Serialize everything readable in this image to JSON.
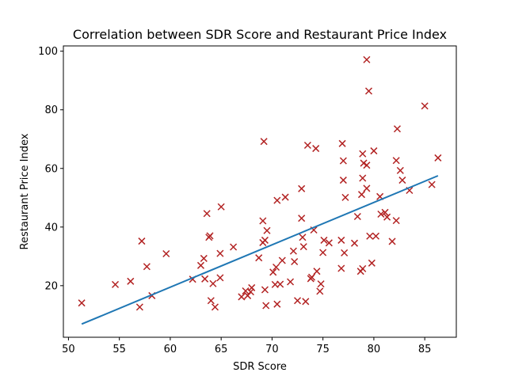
{
  "chart_data": {
    "type": "scatter",
    "title": "Correlation between SDR Score and Restaurant Price Index",
    "xlabel": "SDR Score",
    "ylabel": "Restaurant Price Index",
    "xlim": [
      49.5,
      88.1
    ],
    "ylim": [
      2.4,
      101.8
    ],
    "xticks": [
      50,
      55,
      60,
      65,
      70,
      75,
      80,
      85
    ],
    "yticks": [
      20,
      40,
      60,
      80,
      100
    ],
    "grid": false,
    "series": [
      {
        "type": "scatter",
        "marker": "x",
        "color": "#b22222",
        "points": [
          [
            51.3,
            14.1
          ],
          [
            54.6,
            20.4
          ],
          [
            56.1,
            21.5
          ],
          [
            57.0,
            12.7
          ],
          [
            57.2,
            35.2
          ],
          [
            57.7,
            26.5
          ],
          [
            58.2,
            16.6
          ],
          [
            59.6,
            30.9
          ],
          [
            62.2,
            22.2
          ],
          [
            63.0,
            26.9
          ],
          [
            63.3,
            29.3
          ],
          [
            63.4,
            22.3
          ],
          [
            63.6,
            44.6
          ],
          [
            63.8,
            36.5
          ],
          [
            63.9,
            37.0
          ],
          [
            64.0,
            14.9
          ],
          [
            64.2,
            20.7
          ],
          [
            64.4,
            12.7
          ],
          [
            64.9,
            22.7
          ],
          [
            64.9,
            31.0
          ],
          [
            65.0,
            46.9
          ],
          [
            66.2,
            33.2
          ],
          [
            67.0,
            16.2
          ],
          [
            67.4,
            18.2
          ],
          [
            67.6,
            16.6
          ],
          [
            67.9,
            17.9
          ],
          [
            68.0,
            19.3
          ],
          [
            68.7,
            29.5
          ],
          [
            69.1,
            42.1
          ],
          [
            69.1,
            34.7
          ],
          [
            69.2,
            69.2
          ],
          [
            69.3,
            18.6
          ],
          [
            69.3,
            35.5
          ],
          [
            69.4,
            13.2
          ],
          [
            69.5,
            38.8
          ],
          [
            70.1,
            24.6
          ],
          [
            70.3,
            20.4
          ],
          [
            70.4,
            26.3
          ],
          [
            70.5,
            13.7
          ],
          [
            70.5,
            49.1
          ],
          [
            70.8,
            20.5
          ],
          [
            71.0,
            28.6
          ],
          [
            71.3,
            50.2
          ],
          [
            71.8,
            21.3
          ],
          [
            72.1,
            31.8
          ],
          [
            72.2,
            28.2
          ],
          [
            72.5,
            14.9
          ],
          [
            72.9,
            43.0
          ],
          [
            72.9,
            53.1
          ],
          [
            73.0,
            36.5
          ],
          [
            73.1,
            33.3
          ],
          [
            73.3,
            14.6
          ],
          [
            73.5,
            67.9
          ],
          [
            73.8,
            22.4
          ],
          [
            73.9,
            22.9
          ],
          [
            74.1,
            39.0
          ],
          [
            74.3,
            66.8
          ],
          [
            74.4,
            24.9
          ],
          [
            74.7,
            18.1
          ],
          [
            74.8,
            20.6
          ],
          [
            75.0,
            31.3
          ],
          [
            75.1,
            35.5
          ],
          [
            75.6,
            34.6
          ],
          [
            76.8,
            25.9
          ],
          [
            76.8,
            35.5
          ],
          [
            76.9,
            68.5
          ],
          [
            77.0,
            62.6
          ],
          [
            77.0,
            56.0
          ],
          [
            77.1,
            31.2
          ],
          [
            77.2,
            50.1
          ],
          [
            78.1,
            34.5
          ],
          [
            78.4,
            43.6
          ],
          [
            78.7,
            24.9
          ],
          [
            78.8,
            51.1
          ],
          [
            78.9,
            56.7
          ],
          [
            78.9,
            65.0
          ],
          [
            78.9,
            25.8
          ],
          [
            79.0,
            61.8
          ],
          [
            79.3,
            61.1
          ],
          [
            79.3,
            53.2
          ],
          [
            79.3,
            97.1
          ],
          [
            79.5,
            86.4
          ],
          [
            79.6,
            36.9
          ],
          [
            79.8,
            27.7
          ],
          [
            80.0,
            66.0
          ],
          [
            80.2,
            36.9
          ],
          [
            80.6,
            50.4
          ],
          [
            80.7,
            44.4
          ],
          [
            81.1,
            45.0
          ],
          [
            81.3,
            43.4
          ],
          [
            81.8,
            35.1
          ],
          [
            82.2,
            42.2
          ],
          [
            82.2,
            62.7
          ],
          [
            82.3,
            73.5
          ],
          [
            82.6,
            59.3
          ],
          [
            82.8,
            56.0
          ],
          [
            83.5,
            52.5
          ],
          [
            85.0,
            81.3
          ],
          [
            85.7,
            54.5
          ],
          [
            86.3,
            63.6
          ]
        ]
      },
      {
        "type": "line",
        "color": "#1f77b4",
        "points": [
          [
            51.3,
            6.9
          ],
          [
            86.3,
            57.5
          ]
        ]
      }
    ]
  }
}
